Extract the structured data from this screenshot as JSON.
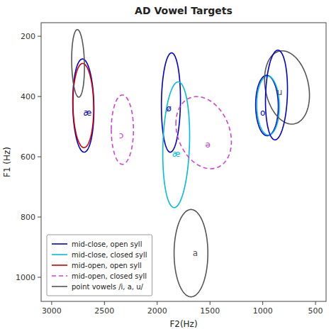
{
  "chart_data": {
    "type": "ellipse",
    "title": "AD Vowel Targets",
    "xlabel": "F2(Hz)",
    "ylabel": "F1 (Hz)",
    "xlim": [
      3100,
      400
    ],
    "ylim": [
      1080,
      155
    ],
    "xticks": [
      3000,
      2500,
      2000,
      1500,
      1000,
      500
    ],
    "yticks": [
      200,
      400,
      600,
      800,
      1000
    ],
    "legend": "lower left",
    "ellipses": [
      {
        "cx": 2700,
        "cy": 430,
        "width": 200,
        "height": 310,
        "angle": 5,
        "color": "#0000CD",
        "line_style": "solid",
        "text": "æ",
        "tx": 2660,
        "ty": 455
      },
      {
        "cx": 2700,
        "cy": 430,
        "width": 195,
        "height": 280,
        "angle": 5,
        "color": "#CC0000",
        "line_style": "solid"
      },
      {
        "cx": 2330,
        "cy": 510,
        "width": 210,
        "height": 230,
        "angle": 0,
        "color": "#CC44CC",
        "line_style": "dashed",
        "text": "ɔ",
        "tx": 2340,
        "ty": 530
      },
      {
        "cx": 1870,
        "cy": 420,
        "width": 180,
        "height": 330,
        "angle": -3,
        "color": "#0000CD",
        "line_style": "solid",
        "text": "ø",
        "tx": 1890,
        "ty": 440
      },
      {
        "cx": 1820,
        "cy": 560,
        "width": 250,
        "height": 420,
        "angle": -8,
        "color": "#00BBDD",
        "line_style": "solid",
        "text": "æ",
        "tx": 1820,
        "ty": 590
      },
      {
        "cx": 1560,
        "cy": 520,
        "width": 530,
        "height": 230,
        "angle": -8,
        "color": "#CC44CC",
        "line_style": "dashed",
        "text": "ə",
        "tx": 1520,
        "ty": 560
      },
      {
        "cx": 960,
        "cy": 430,
        "width": 215,
        "height": 200,
        "angle": -10,
        "color": "#0000CD",
        "line_style": "solid",
        "text": "o",
        "tx": 1000,
        "ty": 455
      },
      {
        "cx": 950,
        "cy": 430,
        "width": 215,
        "height": 195,
        "angle": -10,
        "color": "#00BBDD",
        "line_style": "solid"
      },
      {
        "cx": 2750,
        "cy": 290,
        "width": 120,
        "height": 225,
        "angle": 5,
        "color": "#555555",
        "line_style": "solid"
      },
      {
        "cx": 1680,
        "cy": 920,
        "width": 320,
        "height": 290,
        "angle": 0,
        "color": "#555555",
        "line_style": "solid",
        "text": "a",
        "tx": 1640,
        "ty": 920
      },
      {
        "cx": 770,
        "cy": 370,
        "width": 430,
        "height": 235,
        "angle": -10,
        "color": "#555555",
        "line_style": "solid",
        "text": "u",
        "tx": 840,
        "ty": 385
      },
      {
        "cx": 870,
        "cy": 395,
        "width": 205,
        "height": 300,
        "angle": -10,
        "color": "#0000CD",
        "line_style": "solid"
      }
    ],
    "series": [
      {
        "name": "mid-close, open syll",
        "color": "#0000CD",
        "line_style": "solid"
      },
      {
        "name": "mid-close, closed syll",
        "color": "#00BBDD",
        "line_style": "solid"
      },
      {
        "name": "mid-open, open syll",
        "color": "#CC0000",
        "line_style": "solid"
      },
      {
        "name": "mid-open, closed syll",
        "color": "#CC44CC",
        "line_style": "dashed"
      },
      {
        "name": "point vowels /i, a, u/",
        "color": "#555555",
        "line_style": "solid"
      }
    ]
  }
}
